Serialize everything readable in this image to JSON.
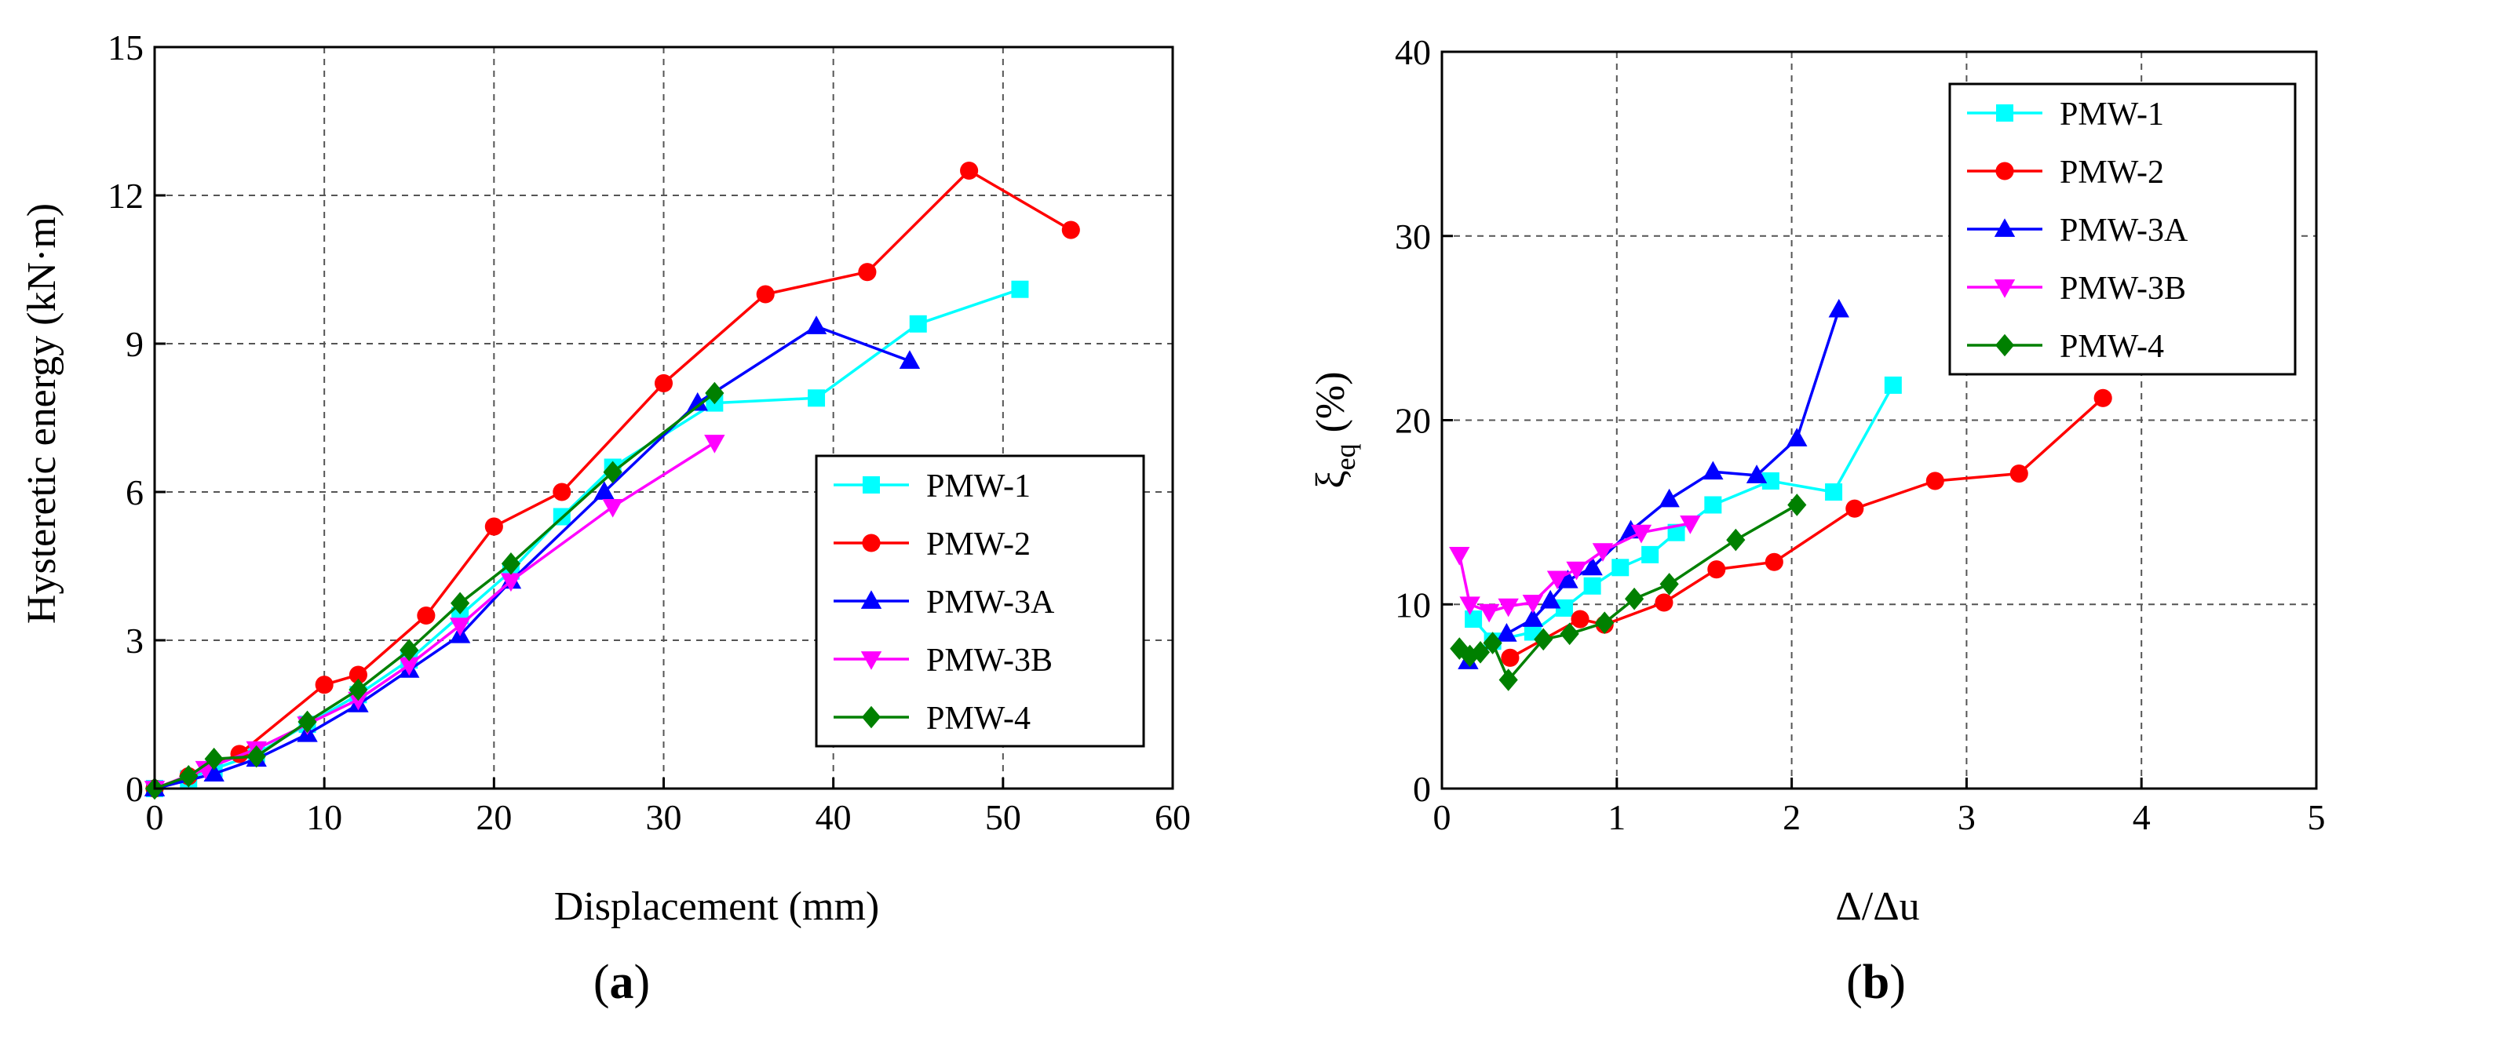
{
  "colors": {
    "PMW-1": "#00FFFF",
    "PMW-2": "#FF0000",
    "PMW-3A": "#0000FF",
    "PMW-3B": "#FF00FF",
    "PMW-4": "#008000"
  },
  "chart_data": [
    {
      "type": "line",
      "panel_label_prefix": "(",
      "panel_label_letter": "a",
      "panel_label_suffix": ")",
      "xlabel": "Displacement (mm)",
      "ylabel": "Hysteretic energy (kN·m)",
      "xlim": [
        0,
        60
      ],
      "ylim": [
        0,
        15
      ],
      "xticks": [
        0,
        10,
        20,
        30,
        40,
        50,
        60
      ],
      "yticks": [
        0,
        3,
        6,
        9,
        12,
        15
      ],
      "grid": true,
      "legend_position": "center-right",
      "series": [
        {
          "name": "PMW-1",
          "marker": "square",
          "x": [
            0,
            2,
            3.5,
            6,
            9,
            12,
            15,
            18,
            21,
            24,
            27,
            33,
            39,
            45,
            51
          ],
          "y": [
            0,
            0.2,
            0.4,
            0.7,
            1.3,
            1.9,
            2.6,
            3.5,
            4.4,
            5.5,
            6.5,
            7.8,
            7.9,
            9.4,
            10.1
          ]
        },
        {
          "name": "PMW-2",
          "marker": "circle",
          "x": [
            0,
            2,
            5,
            10,
            12,
            16,
            20,
            24,
            30,
            36,
            42,
            48,
            54
          ],
          "y": [
            0,
            0.25,
            0.7,
            2.1,
            2.3,
            3.5,
            5.3,
            6.0,
            8.2,
            10.0,
            10.45,
            12.5,
            11.3
          ]
        },
        {
          "name": "PMW-3A",
          "marker": "triangle-up",
          "x": [
            0,
            3.5,
            6,
            9,
            12,
            15,
            18,
            21,
            26.5,
            32,
            39,
            44.5
          ],
          "y": [
            0,
            0.3,
            0.6,
            1.1,
            1.7,
            2.4,
            3.1,
            4.2,
            6.0,
            7.8,
            9.35,
            8.65
          ]
        },
        {
          "name": "PMW-3B",
          "marker": "triangle-down",
          "x": [
            0,
            3,
            6,
            9,
            12,
            15,
            18,
            21,
            27,
            33
          ],
          "y": [
            0,
            0.4,
            0.8,
            1.3,
            1.8,
            2.5,
            3.3,
            4.2,
            5.7,
            7.0
          ]
        },
        {
          "name": "PMW-4",
          "marker": "diamond",
          "x": [
            0,
            2,
            3.5,
            6,
            9,
            12,
            15,
            18,
            21,
            27,
            33
          ],
          "y": [
            0,
            0.25,
            0.6,
            0.65,
            1.35,
            2.0,
            2.8,
            3.75,
            4.55,
            6.4,
            8.0
          ]
        }
      ]
    },
    {
      "type": "line",
      "panel_label_prefix": "(",
      "panel_label_letter": "b",
      "panel_label_suffix": ")",
      "xlabel": "Δ/Δu",
      "ylabel_symbol": "ξ",
      "ylabel_subscript": "eq",
      "ylabel_unit": "(%)",
      "xlim": [
        0,
        5
      ],
      "ylim": [
        0,
        40
      ],
      "xticks": [
        0,
        1,
        2,
        3,
        4,
        5
      ],
      "yticks": [
        0,
        10,
        20,
        30,
        40
      ],
      "grid": true,
      "legend_position": "top-right",
      "series": [
        {
          "name": "PMW-1",
          "marker": "square",
          "x": [
            0.18,
            0.29,
            0.52,
            0.7,
            0.86,
            1.02,
            1.19,
            1.34,
            1.55,
            1.88,
            2.24,
            2.58
          ],
          "y": [
            9.2,
            8.0,
            8.5,
            9.8,
            11.0,
            12.0,
            12.7,
            13.9,
            15.4,
            16.7,
            16.1,
            21.9
          ]
        },
        {
          "name": "PMW-2",
          "marker": "circle",
          "x": [
            0.39,
            0.79,
            0.93,
            1.27,
            1.57,
            1.9,
            2.36,
            2.82,
            3.3,
            3.78
          ],
          "y": [
            7.1,
            9.2,
            8.9,
            10.1,
            11.9,
            12.3,
            15.2,
            16.7,
            17.1,
            21.2
          ]
        },
        {
          "name": "PMW-3A",
          "marker": "triangle-up",
          "x": [
            0.15,
            0.37,
            0.52,
            0.62,
            0.72,
            0.86,
            1.08,
            1.3,
            1.55,
            1.8,
            2.03,
            2.27
          ],
          "y": [
            6.9,
            8.4,
            9.2,
            10.2,
            11.3,
            12.0,
            14.0,
            15.7,
            17.2,
            17.0,
            19.0,
            26.0
          ]
        },
        {
          "name": "PMW-3B",
          "marker": "triangle-down",
          "x": [
            0.1,
            0.16,
            0.27,
            0.38,
            0.52,
            0.66,
            0.77,
            0.92,
            1.14,
            1.42
          ],
          "y": [
            12.7,
            10.0,
            9.6,
            9.9,
            10.1,
            11.4,
            11.9,
            12.9,
            13.9,
            14.4
          ]
        },
        {
          "name": "PMW-4",
          "marker": "diamond",
          "x": [
            0.1,
            0.16,
            0.22,
            0.29,
            0.38,
            0.58,
            0.73,
            0.93,
            1.1,
            1.3,
            1.68,
            2.03
          ],
          "y": [
            7.6,
            7.2,
            7.4,
            7.9,
            5.9,
            8.1,
            8.4,
            9.0,
            10.3,
            11.1,
            13.5,
            15.4
          ]
        }
      ]
    }
  ]
}
